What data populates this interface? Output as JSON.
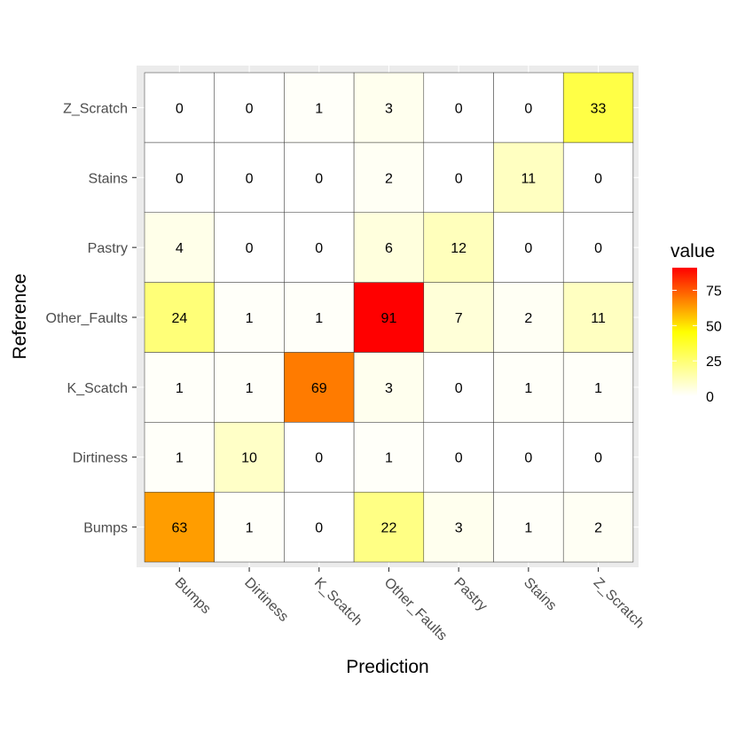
{
  "chart_data": {
    "type": "heatmap",
    "xlabel": "Prediction",
    "ylabel": "Reference",
    "x_categories": [
      "Bumps",
      "Dirtiness",
      "K_Scatch",
      "Other_Faults",
      "Pastry",
      "Stains",
      "Z_Scratch"
    ],
    "y_categories": [
      "Bumps",
      "Dirtiness",
      "K_Scatch",
      "Other_Faults",
      "Pastry",
      "Stains",
      "Z_Scratch"
    ],
    "matrix": [
      [
        63,
        1,
        0,
        22,
        3,
        1,
        2
      ],
      [
        1,
        10,
        0,
        1,
        0,
        0,
        0
      ],
      [
        1,
        1,
        69,
        3,
        0,
        1,
        1
      ],
      [
        24,
        1,
        1,
        91,
        7,
        2,
        11
      ],
      [
        4,
        0,
        0,
        6,
        12,
        0,
        0
      ],
      [
        0,
        0,
        0,
        2,
        0,
        11,
        0
      ],
      [
        0,
        0,
        1,
        3,
        0,
        0,
        33
      ]
    ],
    "value_range": [
      0,
      91
    ],
    "color_scale": [
      "#FFFFFF",
      "#FFFF00",
      "#FF0000"
    ],
    "legend": {
      "title": "value",
      "ticks": [
        0,
        25,
        50,
        75
      ],
      "placement": "right"
    },
    "grid": true
  }
}
